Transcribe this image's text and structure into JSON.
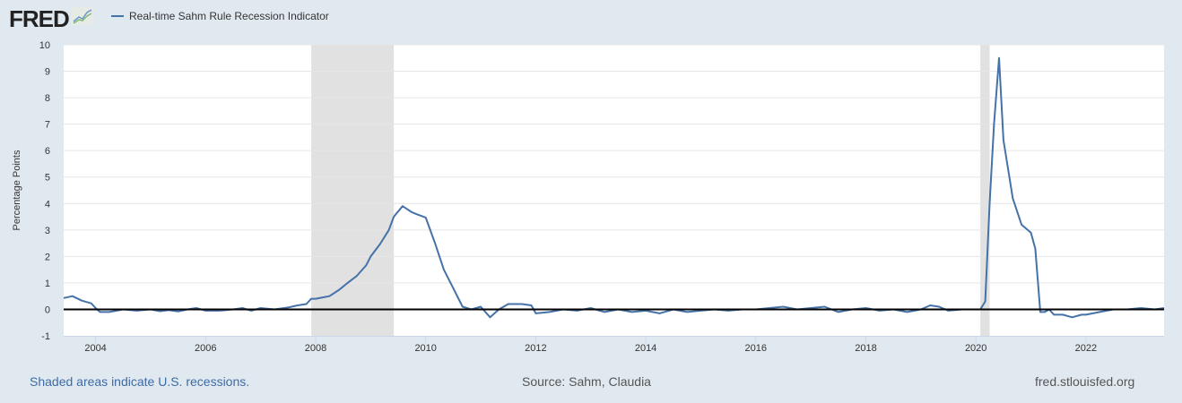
{
  "header": {
    "logo_text": "FRED",
    "logo_icon": "chart-line-icon",
    "legend_label": "Real-time Sahm Rule Recession Indicator",
    "series_color": "#4572a7"
  },
  "footer": {
    "recession_note": "Shaded areas indicate U.S. recessions.",
    "source": "Source: Sahm, Claudia",
    "site": "fred.stlouisfed.org"
  },
  "chart_data": {
    "type": "line",
    "title": "Real-time Sahm Rule Recession Indicator",
    "xlabel": "",
    "ylabel": "Percentage Points",
    "ylim": [
      -1,
      10
    ],
    "yticks": [
      -1,
      0,
      1,
      2,
      3,
      4,
      5,
      6,
      7,
      8,
      9,
      10
    ],
    "xticks": [
      "2004",
      "2006",
      "2008",
      "2010",
      "2012",
      "2014",
      "2016",
      "2018",
      "2020",
      "2022"
    ],
    "xlim": [
      2003.42,
      2023.42
    ],
    "grid": true,
    "legend_position": "top-left",
    "recessions": [
      [
        2007.92,
        2009.42
      ],
      [
        2020.08,
        2020.25
      ]
    ],
    "series": [
      {
        "name": "Real-time Sahm Rule Recession Indicator",
        "x": [
          2003.42,
          2003.58,
          2003.75,
          2003.92,
          2004.0,
          2004.08,
          2004.25,
          2004.5,
          2004.75,
          2005.0,
          2005.17,
          2005.33,
          2005.5,
          2005.67,
          2005.83,
          2006.0,
          2006.25,
          2006.5,
          2006.67,
          2006.83,
          2007.0,
          2007.25,
          2007.5,
          2007.67,
          2007.83,
          2007.92,
          2008.0,
          2008.17,
          2008.25,
          2008.42,
          2008.58,
          2008.75,
          2008.92,
          2009.0,
          2009.17,
          2009.33,
          2009.42,
          2009.58,
          2009.75,
          2009.83,
          2010.0,
          2010.17,
          2010.33,
          2010.5,
          2010.67,
          2010.83,
          2011.0,
          2011.17,
          2011.33,
          2011.5,
          2011.75,
          2011.92,
          2012.0,
          2012.25,
          2012.5,
          2012.75,
          2013.0,
          2013.25,
          2013.5,
          2013.75,
          2014.0,
          2014.25,
          2014.5,
          2014.75,
          2015.0,
          2015.25,
          2015.5,
          2015.75,
          2016.0,
          2016.25,
          2016.5,
          2016.75,
          2017.0,
          2017.25,
          2017.5,
          2017.75,
          2018.0,
          2018.25,
          2018.5,
          2018.75,
          2019.0,
          2019.17,
          2019.33,
          2019.5,
          2019.75,
          2020.0,
          2020.08,
          2020.17,
          2020.25,
          2020.33,
          2020.42,
          2020.5,
          2020.67,
          2020.83,
          2021.0,
          2021.08,
          2021.17,
          2021.25,
          2021.33,
          2021.42,
          2021.58,
          2021.75,
          2021.92,
          2022.0,
          2022.25,
          2022.5,
          2022.75,
          2023.0,
          2023.25,
          2023.42
        ],
        "y": [
          0.43,
          0.5,
          0.33,
          0.23,
          0.05,
          -0.1,
          -0.1,
          0.0,
          -0.05,
          0.0,
          -0.07,
          -0.03,
          -0.08,
          0.0,
          0.05,
          -0.05,
          -0.05,
          0.0,
          0.05,
          -0.05,
          0.05,
          0.0,
          0.07,
          0.15,
          0.2,
          0.4,
          0.4,
          0.47,
          0.5,
          0.73,
          1.0,
          1.27,
          1.67,
          2.0,
          2.47,
          3.0,
          3.5,
          3.9,
          3.67,
          3.6,
          3.47,
          2.5,
          1.5,
          0.8,
          0.1,
          0.0,
          0.1,
          -0.3,
          0.0,
          0.2,
          0.2,
          0.15,
          -0.15,
          -0.1,
          0.0,
          -0.05,
          0.05,
          -0.1,
          0.0,
          -0.1,
          -0.05,
          -0.15,
          0.0,
          -0.1,
          -0.05,
          0.0,
          -0.05,
          0.0,
          0.0,
          0.05,
          0.1,
          0.0,
          0.05,
          0.1,
          -0.1,
          0.0,
          0.05,
          -0.05,
          0.0,
          -0.1,
          0.0,
          0.15,
          0.1,
          -0.05,
          0.0,
          0.0,
          0.0,
          0.3,
          4.0,
          7.0,
          9.5,
          6.4,
          4.2,
          3.2,
          2.9,
          2.3,
          -0.1,
          -0.1,
          0.0,
          -0.2,
          -0.2,
          -0.3,
          -0.2,
          -0.2,
          -0.1,
          0.0,
          0.0,
          0.05,
          0.0,
          0.05
        ]
      }
    ]
  }
}
